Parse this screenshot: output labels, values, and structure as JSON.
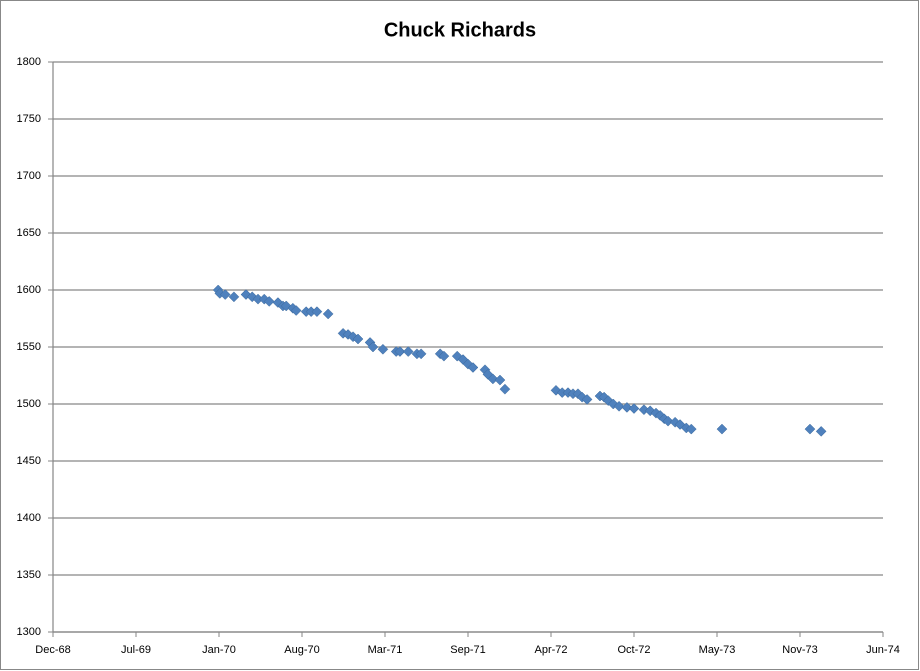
{
  "chart_data": {
    "type": "scatter",
    "title": "Chuck Richards",
    "color": "#4f81bd",
    "grid": true,
    "xlim": [
      25195,
      27195
    ],
    "xticks": [
      {
        "value": 25195,
        "label": "Dec-68"
      },
      {
        "value": 25395,
        "label": "Jul-69"
      },
      {
        "value": 25595,
        "label": "Jan-70"
      },
      {
        "value": 25795,
        "label": "Aug-70"
      },
      {
        "value": 25995,
        "label": "Mar-71"
      },
      {
        "value": 26195,
        "label": "Sep-71"
      },
      {
        "value": 26395,
        "label": "Apr-72"
      },
      {
        "value": 26595,
        "label": "Oct-72"
      },
      {
        "value": 26795,
        "label": "May-73"
      },
      {
        "value": 26995,
        "label": "Nov-73"
      },
      {
        "value": 27195,
        "label": "Jun-74"
      }
    ],
    "ylim": [
      1300,
      1800
    ],
    "yticks": [
      1300,
      1350,
      1400,
      1450,
      1500,
      1550,
      1600,
      1650,
      1700,
      1750,
      1800
    ],
    "x": [
      25593,
      25597,
      25610,
      25631,
      25660,
      25675,
      25689,
      25704,
      25716,
      25737,
      25749,
      25757,
      25773,
      25781,
      25805,
      25817,
      25831,
      25858,
      25894,
      25906,
      25918,
      25930,
      25959,
      25966,
      25990,
      26022,
      26031,
      26051,
      26072,
      26082,
      26128,
      26137,
      26169,
      26183,
      26195,
      26207,
      26236,
      26243,
      26255,
      26272,
      26284,
      26407,
      26422,
      26436,
      26448,
      26460,
      26470,
      26482,
      26513,
      26523,
      26533,
      26545,
      26559,
      26578,
      26595,
      26619,
      26634,
      26648,
      26658,
      26668,
      26677,
      26694,
      26706,
      26721,
      26733,
      26807,
      27019,
      27046
    ],
    "values": [
      1600,
      1597,
      1596,
      1594,
      1596,
      1594,
      1592,
      1592,
      1590,
      1589,
      1586,
      1586,
      1584,
      1582,
      1581,
      1581,
      1581,
      1579,
      1562,
      1561,
      1559,
      1557,
      1554,
      1550,
      1548,
      1546,
      1546,
      1546,
      1544,
      1544,
      1544,
      1542,
      1542,
      1539,
      1535,
      1532,
      1530,
      1526,
      1522,
      1521,
      1513,
      1512,
      1510,
      1510,
      1509,
      1509,
      1506,
      1504,
      1507,
      1506,
      1503,
      1500,
      1498,
      1497,
      1496,
      1495,
      1494,
      1492,
      1490,
      1487,
      1485,
      1484,
      1482,
      1479,
      1478,
      1478,
      1478,
      1476
    ]
  }
}
